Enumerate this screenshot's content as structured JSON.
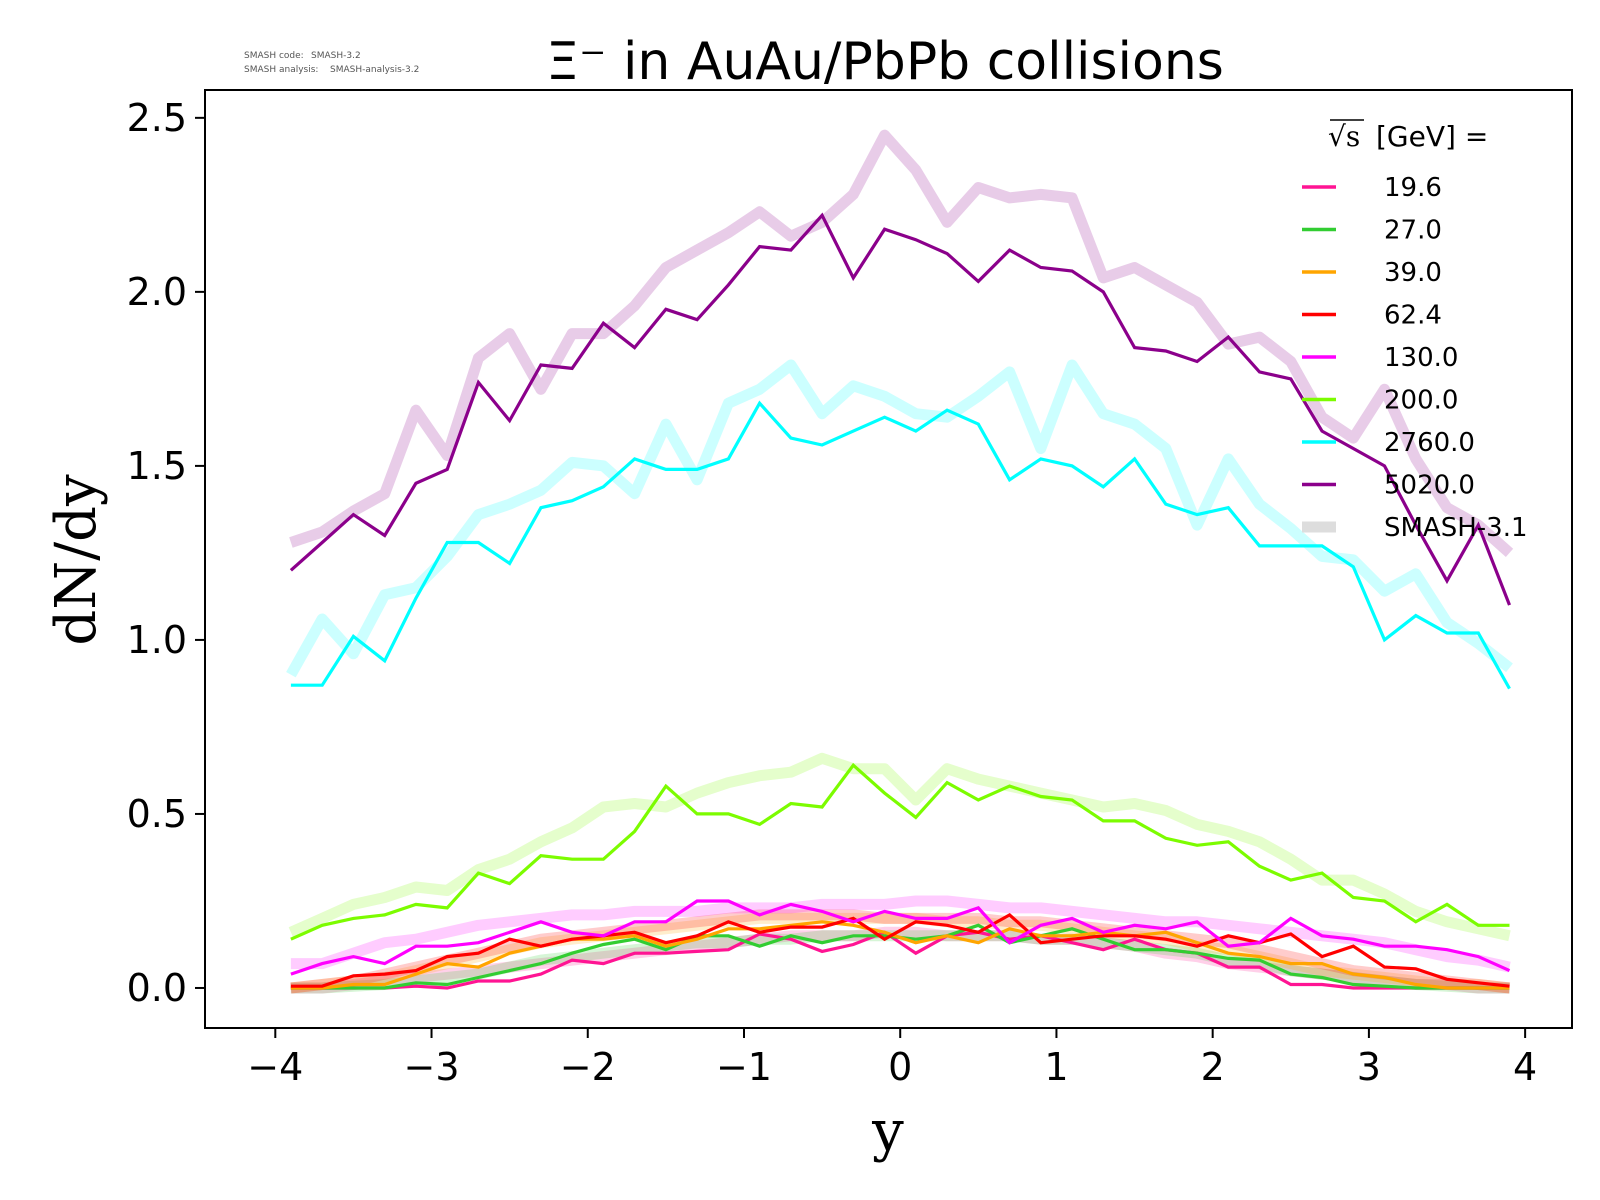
{
  "meta": {
    "line1_label": "SMASH code:",
    "line1_value": "SMASH-3.2",
    "line2_label": "SMASH analysis:",
    "line2_value": "SMASH-analysis-3.2"
  },
  "chart_data": {
    "type": "line",
    "title": "Ξ⁻ in AuAu/PbPb collisions",
    "xlabel": "y",
    "ylabel": "dN/dy",
    "xlim": [
      -4.45,
      4.3
    ],
    "ylim": [
      -0.115,
      2.58
    ],
    "xticks": [
      -4,
      -3,
      -2,
      -1,
      0,
      1,
      2,
      3,
      4
    ],
    "xtick_labels": [
      "−4",
      "−3",
      "−2",
      "−1",
      "0",
      "1",
      "2",
      "3",
      "4"
    ],
    "yticks": [
      0.0,
      0.5,
      1.0,
      1.5,
      2.0,
      2.5
    ],
    "ytick_labels": [
      "0.0",
      "0.5",
      "1.0",
      "1.5",
      "2.0",
      "2.5"
    ],
    "grid": false,
    "legend": {
      "placement": "top-right",
      "title_sqrt": "√s",
      "title_suffix": "[GeV] =",
      "reference_label": "SMASH-3.1",
      "reference_color": "#dddddd"
    },
    "x": [
      -3.9,
      -3.7,
      -3.5,
      -3.3,
      -3.1,
      -2.9,
      -2.7,
      -2.5,
      -2.3,
      -2.1,
      -1.9,
      -1.7,
      -1.5,
      -1.3,
      -1.1,
      -0.9,
      -0.7,
      -0.5,
      -0.3,
      -0.1,
      0.1,
      0.3,
      0.5,
      0.7,
      0.9,
      1.1,
      1.3,
      1.5,
      1.7,
      1.9,
      2.1,
      2.3,
      2.5,
      2.7,
      2.9,
      3.1,
      3.3,
      3.5,
      3.7,
      3.9
    ],
    "series": [
      {
        "name": "19.6",
        "color": "#ff1493",
        "values": [
          0.0,
          0.0,
          0.0,
          0.0,
          0.005,
          0.0,
          0.02,
          0.02,
          0.04,
          0.08,
          0.07,
          0.1,
          0.1,
          0.105,
          0.11,
          0.155,
          0.14,
          0.105,
          0.125,
          0.16,
          0.1,
          0.15,
          0.16,
          0.14,
          0.15,
          0.13,
          0.11,
          0.14,
          0.11,
          0.1,
          0.06,
          0.06,
          0.01,
          0.01,
          0.0,
          0.0,
          0.0,
          0.0,
          0.0,
          0.0
        ],
        "reference": [
          0.0,
          0.0,
          0.01,
          0.02,
          0.03,
          0.04,
          0.05,
          0.06,
          0.07,
          0.08,
          0.09,
          0.1,
          0.11,
          0.12,
          0.13,
          0.14,
          0.15,
          0.15,
          0.15,
          0.16,
          0.16,
          0.15,
          0.15,
          0.15,
          0.14,
          0.14,
          0.13,
          0.12,
          0.1,
          0.09,
          0.07,
          0.06,
          0.05,
          0.04,
          0.03,
          0.02,
          0.01,
          0.01,
          0.0,
          0.0
        ]
      },
      {
        "name": "27.0",
        "color": "#32cd32",
        "values": [
          0.0,
          0.0,
          0.0,
          0.0,
          0.015,
          0.01,
          0.03,
          0.05,
          0.07,
          0.1,
          0.125,
          0.14,
          0.11,
          0.15,
          0.15,
          0.12,
          0.15,
          0.13,
          0.15,
          0.15,
          0.14,
          0.15,
          0.18,
          0.13,
          0.15,
          0.17,
          0.14,
          0.11,
          0.11,
          0.1,
          0.085,
          0.08,
          0.04,
          0.03,
          0.01,
          0.005,
          0.0,
          0.0,
          0.0,
          0.0
        ],
        "reference": [
          0.0,
          0.0,
          0.005,
          0.01,
          0.02,
          0.03,
          0.04,
          0.06,
          0.08,
          0.09,
          0.1,
          0.11,
          0.12,
          0.13,
          0.13,
          0.14,
          0.14,
          0.15,
          0.15,
          0.15,
          0.15,
          0.15,
          0.15,
          0.15,
          0.14,
          0.14,
          0.13,
          0.12,
          0.11,
          0.1,
          0.08,
          0.07,
          0.05,
          0.04,
          0.03,
          0.02,
          0.01,
          0.005,
          0.0,
          0.0
        ]
      },
      {
        "name": "39.0",
        "color": "#ffa500",
        "values": [
          0.0,
          0.0,
          0.01,
          0.01,
          0.04,
          0.07,
          0.06,
          0.1,
          0.12,
          0.14,
          0.14,
          0.15,
          0.12,
          0.14,
          0.17,
          0.17,
          0.18,
          0.19,
          0.18,
          0.16,
          0.13,
          0.15,
          0.13,
          0.17,
          0.15,
          0.15,
          0.16,
          0.15,
          0.16,
          0.13,
          0.1,
          0.09,
          0.07,
          0.07,
          0.04,
          0.03,
          0.01,
          0.0,
          0.0,
          0.0
        ],
        "reference": [
          0.0,
          0.01,
          0.02,
          0.03,
          0.05,
          0.07,
          0.09,
          0.11,
          0.13,
          0.14,
          0.15,
          0.16,
          0.17,
          0.18,
          0.19,
          0.2,
          0.2,
          0.2,
          0.2,
          0.2,
          0.2,
          0.19,
          0.19,
          0.18,
          0.18,
          0.17,
          0.16,
          0.15,
          0.14,
          0.12,
          0.11,
          0.09,
          0.07,
          0.05,
          0.04,
          0.03,
          0.02,
          0.01,
          0.01,
          0.0
        ]
      },
      {
        "name": "62.4",
        "color": "#ff0000",
        "values": [
          0.005,
          0.005,
          0.035,
          0.04,
          0.05,
          0.09,
          0.1,
          0.14,
          0.12,
          0.14,
          0.15,
          0.16,
          0.13,
          0.15,
          0.19,
          0.16,
          0.175,
          0.175,
          0.2,
          0.14,
          0.19,
          0.18,
          0.16,
          0.21,
          0.13,
          0.14,
          0.15,
          0.15,
          0.14,
          0.12,
          0.15,
          0.13,
          0.155,
          0.09,
          0.12,
          0.06,
          0.055,
          0.025,
          0.015,
          0.005
        ],
        "reference": [
          0.0,
          0.01,
          0.02,
          0.04,
          0.06,
          0.08,
          0.1,
          0.12,
          0.14,
          0.15,
          0.16,
          0.17,
          0.18,
          0.19,
          0.2,
          0.21,
          0.21,
          0.21,
          0.21,
          0.2,
          0.2,
          0.2,
          0.2,
          0.19,
          0.19,
          0.18,
          0.17,
          0.16,
          0.15,
          0.14,
          0.13,
          0.11,
          0.09,
          0.07,
          0.05,
          0.04,
          0.03,
          0.02,
          0.01,
          0.0
        ]
      },
      {
        "name": "130.0",
        "color": "#ff00ff",
        "values": [
          0.04,
          0.07,
          0.09,
          0.07,
          0.12,
          0.12,
          0.13,
          0.16,
          0.19,
          0.16,
          0.15,
          0.19,
          0.19,
          0.25,
          0.25,
          0.21,
          0.24,
          0.22,
          0.19,
          0.22,
          0.2,
          0.2,
          0.23,
          0.13,
          0.18,
          0.2,
          0.16,
          0.18,
          0.17,
          0.19,
          0.12,
          0.13,
          0.2,
          0.15,
          0.14,
          0.12,
          0.12,
          0.11,
          0.09,
          0.05
        ],
        "reference": [
          0.07,
          0.07,
          0.1,
          0.13,
          0.14,
          0.16,
          0.18,
          0.19,
          0.2,
          0.21,
          0.21,
          0.22,
          0.22,
          0.22,
          0.23,
          0.23,
          0.23,
          0.24,
          0.24,
          0.24,
          0.25,
          0.25,
          0.24,
          0.23,
          0.23,
          0.22,
          0.21,
          0.2,
          0.19,
          0.19,
          0.18,
          0.17,
          0.16,
          0.15,
          0.14,
          0.13,
          0.11,
          0.09,
          0.08,
          0.06
        ]
      },
      {
        "name": "200.0",
        "color": "#7cfc00",
        "values": [
          0.14,
          0.18,
          0.2,
          0.21,
          0.24,
          0.23,
          0.33,
          0.3,
          0.38,
          0.37,
          0.37,
          0.45,
          0.58,
          0.5,
          0.5,
          0.47,
          0.53,
          0.52,
          0.64,
          0.56,
          0.49,
          0.59,
          0.54,
          0.58,
          0.55,
          0.54,
          0.48,
          0.48,
          0.43,
          0.41,
          0.42,
          0.35,
          0.31,
          0.33,
          0.26,
          0.25,
          0.19,
          0.24,
          0.18,
          0.18
        ],
        "reference": [
          0.16,
          0.2,
          0.24,
          0.26,
          0.29,
          0.28,
          0.34,
          0.37,
          0.42,
          0.46,
          0.52,
          0.53,
          0.52,
          0.56,
          0.59,
          0.61,
          0.62,
          0.66,
          0.63,
          0.63,
          0.54,
          0.63,
          0.6,
          0.58,
          0.56,
          0.54,
          0.52,
          0.53,
          0.51,
          0.47,
          0.45,
          0.42,
          0.37,
          0.31,
          0.31,
          0.27,
          0.22,
          0.19,
          0.17,
          0.15
        ]
      },
      {
        "name": "2760.0",
        "color": "#00ffff",
        "values": [
          0.87,
          0.87,
          1.01,
          0.94,
          1.12,
          1.28,
          1.28,
          1.22,
          1.38,
          1.4,
          1.44,
          1.52,
          1.49,
          1.49,
          1.52,
          1.68,
          1.58,
          1.56,
          1.6,
          1.64,
          1.6,
          1.66,
          1.62,
          1.46,
          1.52,
          1.5,
          1.44,
          1.52,
          1.39,
          1.36,
          1.38,
          1.27,
          1.27,
          1.27,
          1.21,
          1.0,
          1.07,
          1.02,
          1.02,
          0.86
        ],
        "reference": [
          0.9,
          1.06,
          0.96,
          1.13,
          1.15,
          1.24,
          1.36,
          1.39,
          1.43,
          1.51,
          1.5,
          1.42,
          1.62,
          1.46,
          1.68,
          1.72,
          1.79,
          1.65,
          1.73,
          1.7,
          1.65,
          1.64,
          1.7,
          1.77,
          1.55,
          1.79,
          1.65,
          1.62,
          1.55,
          1.33,
          1.52,
          1.39,
          1.32,
          1.24,
          1.23,
          1.14,
          1.19,
          1.05,
          0.99,
          0.92
        ]
      },
      {
        "name": "5020.0",
        "color": "#8b008b",
        "values": [
          1.2,
          1.28,
          1.36,
          1.3,
          1.45,
          1.49,
          1.74,
          1.63,
          1.79,
          1.78,
          1.91,
          1.84,
          1.95,
          1.92,
          2.02,
          2.13,
          2.12,
          2.22,
          2.04,
          2.18,
          2.15,
          2.11,
          2.03,
          2.12,
          2.07,
          2.06,
          2.0,
          1.84,
          1.83,
          1.8,
          1.87,
          1.77,
          1.75,
          1.6,
          1.55,
          1.5,
          1.33,
          1.17,
          1.33,
          1.1
        ],
        "reference": [
          1.28,
          1.31,
          1.37,
          1.42,
          1.66,
          1.53,
          1.81,
          1.88,
          1.72,
          1.88,
          1.88,
          1.96,
          2.07,
          2.12,
          2.17,
          2.23,
          2.16,
          2.2,
          2.28,
          2.45,
          2.35,
          2.2,
          2.3,
          2.27,
          2.28,
          2.27,
          2.04,
          2.07,
          2.02,
          1.97,
          1.85,
          1.87,
          1.8,
          1.64,
          1.58,
          1.72,
          1.52,
          1.38,
          1.33,
          1.25
        ]
      }
    ]
  }
}
